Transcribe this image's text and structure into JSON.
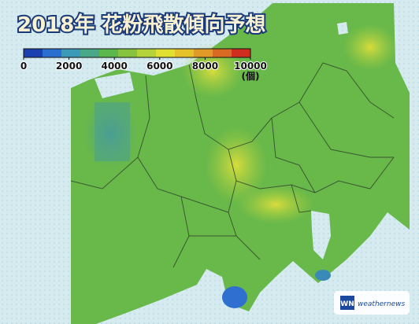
{
  "title": "2018年 花粉飛散傾向予想",
  "legend": {
    "ticks": [
      0,
      2000,
      4000,
      6000,
      8000,
      10000
    ],
    "unit": "(個)",
    "colors": [
      "#1a3fb0",
      "#2a6fd0",
      "#3a9ab8",
      "#48a888",
      "#5cb84c",
      "#86c440",
      "#b4d23a",
      "#e0e030",
      "#e6c22a",
      "#e09a28",
      "#d86a24",
      "#d02c20"
    ]
  },
  "logo": {
    "mark": "WN",
    "text": "weathernews"
  }
}
